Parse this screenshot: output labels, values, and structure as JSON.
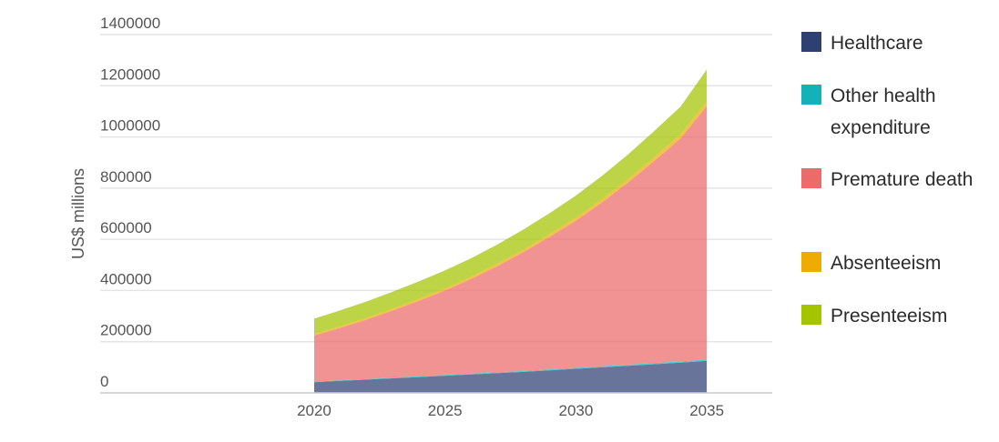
{
  "chart_data": {
    "type": "area",
    "stacked": true,
    "title": "",
    "xlabel": "",
    "ylabel": "US$ millions",
    "x": [
      2020,
      2021,
      2022,
      2023,
      2024,
      2025,
      2026,
      2027,
      2028,
      2029,
      2030,
      2031,
      2032,
      2033,
      2034,
      2035
    ],
    "xticks": [
      2020,
      2025,
      2030,
      2035
    ],
    "xlim": [
      2016,
      2037.5
    ],
    "ylim": [
      0,
      1400000
    ],
    "yticks": [
      0,
      200000,
      400000,
      600000,
      800000,
      1000000,
      1200000,
      1400000
    ],
    "yticklabels": [
      "0",
      "200000",
      "400000",
      "600000",
      "800000",
      "1000000",
      "1200000",
      "1400000"
    ],
    "grid": true,
    "legend_position": "right",
    "series": [
      {
        "name": "Healthcare",
        "color": "#2e3f72",
        "values": [
          42000,
          47000,
          52000,
          57000,
          62000,
          67000,
          72000,
          77000,
          82000,
          88000,
          94000,
          100000,
          106000,
          112000,
          118000,
          125000
        ]
      },
      {
        "name": "Other health expenditure",
        "color": "#13b1b8",
        "values": [
          2000,
          2000,
          2000,
          2500,
          2500,
          3000,
          3000,
          3500,
          3500,
          4000,
          4000,
          4500,
          4500,
          5000,
          5000,
          5500
        ]
      },
      {
        "name": "Premature death",
        "color": "#ec6a6a",
        "values": [
          180000,
          205000,
          232000,
          262000,
          295000,
          330000,
          370000,
          415000,
          465000,
          518000,
          575000,
          640000,
          712000,
          790000,
          872000,
          990000
        ]
      },
      {
        "name": "Absenteeism",
        "color": "#f0ab00",
        "values": [
          6000,
          6500,
          7000,
          7500,
          8000,
          8500,
          9000,
          9500,
          10000,
          11000,
          12000,
          13000,
          14000,
          15000,
          16000,
          18000
        ]
      },
      {
        "name": "Presenteeism",
        "color": "#a4c400",
        "values": [
          60000,
          62000,
          64000,
          66000,
          68000,
          70000,
          72000,
          75000,
          78000,
          82000,
          86000,
          91000,
          96000,
          102000,
          108000,
          125000
        ]
      }
    ]
  }
}
